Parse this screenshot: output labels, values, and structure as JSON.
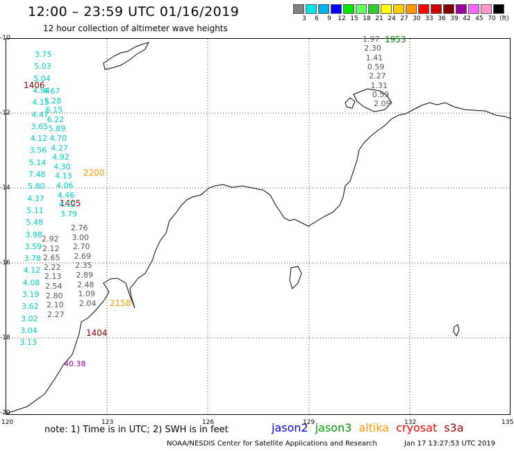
{
  "title": "12:00 – 23:59 UTC 01/16/2019",
  "subtitle": "12 hour collection of altimeter wave heights",
  "scale": {
    "colors": [
      "#808080",
      "#00e5e5",
      "#00b0f0",
      "#0000ff",
      "#00e600",
      "#66ff66",
      "#33cc33",
      "#ffff00",
      "#ffcc00",
      "#ff9900",
      "#ff0000",
      "#cc0000",
      "#800000",
      "#990099",
      "#ff66ff",
      "#ff99cc",
      "#000000"
    ],
    "labels": [
      "3",
      "6",
      "9",
      "12",
      "15",
      "18",
      "21",
      "24",
      "27",
      "30",
      "33",
      "36",
      "39",
      "42",
      "45",
      "70",
      "(ft)"
    ]
  },
  "axes": {
    "lat_labels": [
      "-10",
      "-12",
      "-14",
      "-16",
      "-18",
      "-20"
    ],
    "lon_labels": [
      "120",
      "123",
      "126",
      "129",
      "132",
      "135"
    ]
  },
  "passes": [
    {
      "label": "1406",
      "color": "#800000"
    },
    {
      "label": "1405",
      "color": "#800000"
    },
    {
      "label": "1404",
      "color": "#800000"
    },
    {
      "label": "2200",
      "color": "#ff9900"
    },
    {
      "label": "2158",
      "color": "#ff9900"
    },
    {
      "label": "1953",
      "color": "#008000"
    }
  ],
  "wave_values": {
    "cyan_col1": [
      "3.75",
      "5.03",
      "5.04",
      "4.94",
      "4.15",
      "4.47",
      "3.65",
      "4.12",
      "3.56",
      "5.14",
      "7.48",
      "5.80",
      "4.37",
      "5.11",
      "5.48",
      "3.98",
      "3.59",
      "3.78",
      "4.12",
      "4.08",
      "3.19",
      "3.62",
      "3.02",
      "3.04",
      "3.13"
    ],
    "cyan_col2": [
      "4.67",
      "5.28",
      "6.15",
      "6.22",
      "5.89",
      "4.70",
      "4.27",
      "4.92",
      "4.30",
      "4.13",
      "4.06",
      "4.46",
      "4.12",
      "3.79"
    ],
    "gray_col1": [
      "2.92",
      "2.12",
      "2.65",
      "2.22",
      "2.13",
      "2.54",
      "2.80",
      "2.10",
      "2.27"
    ],
    "gray_col2": [
      "2.76",
      "3.00",
      "2.70",
      "2.69",
      "2.35",
      "2.89",
      "2.48",
      "1.09",
      "2.04"
    ],
    "gray_ne": [
      "1.97",
      "2.30",
      "1.41",
      "0.59",
      "2.27",
      "1.31",
      "0.59",
      "2.09"
    ],
    "magenta": [
      "40.38"
    ]
  },
  "note": "note: 1) Time is in UTC; 2) SWH is in feet",
  "legend": [
    {
      "name": "jason2",
      "color": "#0000cc"
    },
    {
      "name": "jason3",
      "color": "#009900"
    },
    {
      "name": "altika",
      "color": "#ff9900"
    },
    {
      "name": "cryosat",
      "color": "#ee0000"
    },
    {
      "name": "s3a",
      "color": "#990000"
    }
  ],
  "credit": "NOAA/NESDIS Center for Satellite Applications and Research",
  "stamp": "Jan 17 13:27:53 UTC 2019"
}
